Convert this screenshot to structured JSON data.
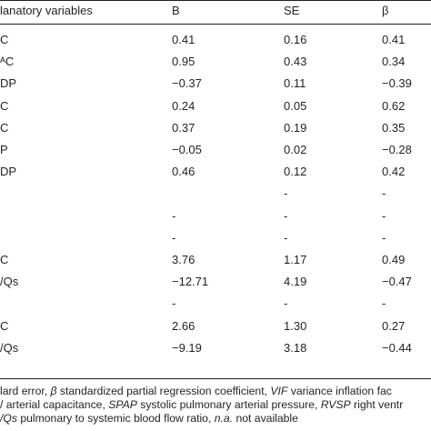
{
  "header": {
    "label": "lanatory variables",
    "b": "B",
    "se": "SE",
    "beta": "β"
  },
  "rows": [
    {
      "label": "C",
      "b": "0.41",
      "se": "0.16",
      "beta": "0.41"
    },
    {
      "label": "ᴬC",
      "b": "0.95",
      "se": "0.43",
      "beta": "0.34"
    },
    {
      "label": "DP",
      "b": "−0.37",
      "se": "0.11",
      "beta": "−0.39"
    },
    {
      "label": "C",
      "b": "0.24",
      "se": "0.05",
      "beta": "0.62"
    },
    {
      "label": "C",
      "b": "0.37",
      "se": "0.19",
      "beta": "0.35"
    },
    {
      "label": "P",
      "b": "−0.05",
      "se": "0.02",
      "beta": "−0.28"
    },
    {
      "label": "DP",
      "b": "0.46",
      "se": "0.12",
      "beta": "0.42"
    },
    {
      "label": "",
      "b": "",
      "se": "-",
      "beta": "-"
    },
    {
      "label": "",
      "b": "-",
      "se": "-",
      "beta": "-"
    },
    {
      "label": "",
      "b": "-",
      "se": "-",
      "beta": "-"
    },
    {
      "label": "C",
      "b": "3.76",
      "se": "1.17",
      "beta": "0.49"
    },
    {
      "label": "/Qs",
      "b": "−12.71",
      "se": "4.19",
      "beta": "−0.47"
    },
    {
      "label": "",
      "b": "-",
      "se": "-",
      "beta": "-"
    },
    {
      "label": "C",
      "b": "2.66",
      "se": "1.30",
      "beta": "0.27"
    },
    {
      "label": "/Qs",
      "b": "−9.19",
      "se": "3.18",
      "beta": "−0.44"
    }
  ],
  "footnote": {
    "line1": [
      {
        "t": "lard error, ",
        "i": false
      },
      {
        "t": "β",
        "i": true
      },
      {
        "t": " standardized partial regression coefficient, ",
        "i": false
      },
      {
        "t": "VIF",
        "i": true
      },
      {
        "t": " variance inflation fac",
        "i": false
      }
    ],
    "line2": [
      {
        "t": "/ arterial capacitance, ",
        "i": false
      },
      {
        "t": "SPAP",
        "i": true
      },
      {
        "t": " systolic pulmonary arterial pressure, ",
        "i": false
      },
      {
        "t": "RVSP",
        "i": true
      },
      {
        "t": " right ventr",
        "i": false
      }
    ],
    "line3": [
      {
        "t": "/Qs",
        "i": true
      },
      {
        "t": " pulmonary to systemic blood flow ratio, ",
        "i": false
      },
      {
        "t": "n.a.",
        "i": true
      },
      {
        "t": " not available",
        "i": false
      }
    ]
  }
}
